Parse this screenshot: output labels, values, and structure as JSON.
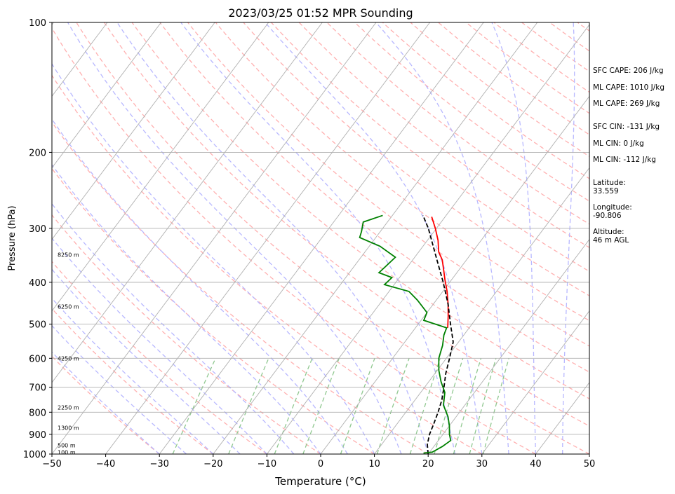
{
  "chart_data": {
    "type": "line",
    "title": "2023/03/25 01:52 MPR Sounding",
    "xlabel": "Temperature (°C)",
    "ylabel": "Pressure (hPa)",
    "xlim": [
      -50,
      50
    ],
    "ylim": [
      1000,
      100
    ],
    "y_scale": "log",
    "grid": true,
    "x_ticks": [
      "−50",
      "−40",
      "−30",
      "−20",
      "−10",
      "0",
      "10",
      "20",
      "30",
      "40",
      "50"
    ],
    "y_ticks": [
      "100",
      "200",
      "300",
      "400",
      "500",
      "600",
      "700",
      "800",
      "900",
      "1000"
    ],
    "height_labels": [
      {
        "p": 990,
        "label": "100 m"
      },
      {
        "p": 955,
        "label": "500 m"
      },
      {
        "p": 870,
        "label": "1300 m"
      },
      {
        "p": 780,
        "label": "2250 m"
      },
      {
        "p": 600,
        "label": "4250 m"
      },
      {
        "p": 455,
        "label": "6250 m"
      },
      {
        "p": 345,
        "label": "8250 m"
      }
    ],
    "series": [
      {
        "color": "#ff0000",
        "points": [
          {
            "p": 282,
            "t": -12.5
          },
          {
            "p": 300,
            "t": -10.2
          },
          {
            "p": 320,
            "t": -8.0
          },
          {
            "p": 340,
            "t": -6.3
          },
          {
            "p": 355,
            "t": -4.5
          },
          {
            "p": 375,
            "t": -2.8
          },
          {
            "p": 395,
            "t": -1.2
          },
          {
            "p": 420,
            "t": 0.8
          },
          {
            "p": 450,
            "t": 2.8
          },
          {
            "p": 480,
            "t": 4.5
          },
          {
            "p": 510,
            "t": 6.0
          }
        ]
      },
      {
        "color": "#000000",
        "points": [
          {
            "p": 1000,
            "t": 20.0
          },
          {
            "p": 950,
            "t": 18.5
          },
          {
            "p": 900,
            "t": 17.5
          },
          {
            "p": 850,
            "t": 16.8
          },
          {
            "p": 800,
            "t": 16.0
          },
          {
            "p": 750,
            "t": 15.0
          },
          {
            "p": 700,
            "t": 13.6
          },
          {
            "p": 650,
            "t": 12.0
          },
          {
            "p": 600,
            "t": 10.6
          },
          {
            "p": 550,
            "t": 9.0
          },
          {
            "p": 500,
            "t": 6.0
          },
          {
            "p": 450,
            "t": 2.8
          },
          {
            "p": 400,
            "t": -1.2
          },
          {
            "p": 350,
            "t": -6.0
          },
          {
            "p": 300,
            "t": -11.5
          },
          {
            "p": 280,
            "t": -14.3
          }
        ]
      },
      {
        "color": "#008000",
        "points": [
          {
            "p": 995,
            "t": 19.0
          },
          {
            "p": 990,
            "t": 20.5
          },
          {
            "p": 960,
            "t": 21.6
          },
          {
            "p": 930,
            "t": 22.3
          },
          {
            "p": 900,
            "t": 21.2
          },
          {
            "p": 860,
            "t": 20.0
          },
          {
            "p": 820,
            "t": 18.5
          },
          {
            "p": 770,
            "t": 16.0
          },
          {
            "p": 720,
            "t": 14.5
          },
          {
            "p": 680,
            "t": 12.3
          },
          {
            "p": 640,
            "t": 10.3
          },
          {
            "p": 600,
            "t": 8.6
          },
          {
            "p": 560,
            "t": 7.5
          },
          {
            "p": 530,
            "t": 6.3
          },
          {
            "p": 510,
            "t": 5.8
          },
          {
            "p": 490,
            "t": 0.5
          },
          {
            "p": 470,
            "t": 0.0
          },
          {
            "p": 440,
            "t": -3.5
          },
          {
            "p": 420,
            "t": -6.3
          },
          {
            "p": 405,
            "t": -11.8
          },
          {
            "p": 390,
            "t": -11.4
          },
          {
            "p": 380,
            "t": -14.5
          },
          {
            "p": 370,
            "t": -14.2
          },
          {
            "p": 350,
            "t": -13.6
          },
          {
            "p": 330,
            "t": -18.0
          },
          {
            "p": 315,
            "t": -23.0
          },
          {
            "p": 305,
            "t": -23.5
          },
          {
            "p": 290,
            "t": -24.5
          },
          {
            "p": 280,
            "t": -21.8
          }
        ]
      }
    ],
    "bg_colors": {
      "isotherm": "#b0b0b0",
      "dry_adiabat": "#ffb0b0",
      "moist_adiabat": "#b8b8ff",
      "mixing_ratio": "#90c890",
      "isobar": "#b0b0b0"
    }
  },
  "indices": {
    "sfc_cape": "SFC CAPE: 206 J/kg",
    "ml_cape_1": "ML CAPE: 1010 J/kg",
    "ml_cape_2": "ML CAPE: 269 J/kg",
    "sfc_cin": "SFC CIN: -131 J/kg",
    "ml_cin_1": "ML CIN: 0 J/kg",
    "ml_cin_2": "ML CIN: -112 J/kg",
    "latitude": "Latitude:\n33.559",
    "longitude": "Longitude:\n-90.806",
    "altitude": "Altitude:\n46 m AGL"
  }
}
